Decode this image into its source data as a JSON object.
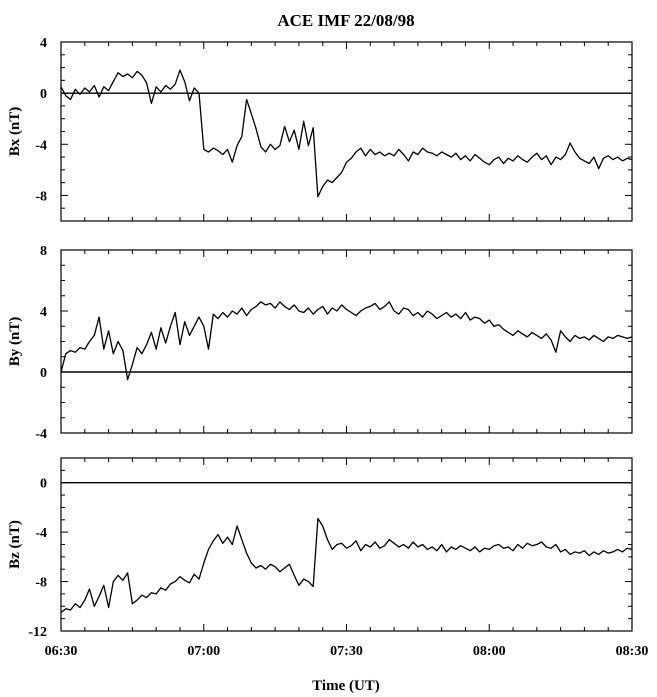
{
  "chart_data": {
    "type": "line",
    "title": "ACE IMF 22/08/98",
    "xlabel": "Time (UT)",
    "x_ticks": [
      "06:30",
      "07:00",
      "07:30",
      "08:00",
      "08:30"
    ],
    "x_range_minutes": [
      0,
      120
    ],
    "panels": [
      {
        "ylabel": "Bx (nT)",
        "ylim": [
          -10,
          4
        ],
        "yticks": [
          4,
          0,
          -4,
          -8
        ],
        "reference_line": 0,
        "series": [
          {
            "x": [
              0,
              1,
              2,
              3,
              4,
              5,
              6,
              7,
              8,
              9,
              10,
              11,
              12,
              13,
              14,
              15,
              16,
              17,
              18,
              19,
              20,
              21,
              22,
              23,
              24,
              25,
              26,
              27,
              28,
              29,
              30,
              31,
              32,
              33,
              34,
              35,
              36,
              37,
              38,
              39,
              40,
              41,
              42,
              43,
              44,
              45,
              46,
              47,
              48,
              49,
              50,
              51,
              52,
              53,
              54,
              55,
              56,
              57,
              58,
              59,
              60,
              61,
              62,
              63,
              64,
              65,
              66,
              67,
              68,
              69,
              70,
              71,
              72,
              73,
              74,
              75,
              76,
              77,
              78,
              79,
              80,
              81,
              82,
              83,
              84,
              85,
              86,
              87,
              88,
              89,
              90,
              91,
              92,
              93,
              94,
              95,
              96,
              97,
              98,
              99,
              100,
              101,
              102,
              103,
              104,
              105,
              106,
              107,
              108,
              109,
              110,
              111,
              112,
              113,
              114,
              115,
              116,
              117,
              118,
              119,
              120
            ],
            "values": [
              0.5,
              -0.2,
              -0.5,
              0.3,
              -0.1,
              0.4,
              0.1,
              0.6,
              -0.3,
              0.5,
              0.2,
              0.9,
              1.6,
              1.3,
              1.5,
              1.2,
              1.7,
              1.4,
              0.8,
              -0.8,
              0.5,
              0.1,
              0.6,
              0.3,
              0.7,
              1.8,
              0.9,
              -0.6,
              0.4,
              0.0,
              -4.4,
              -4.6,
              -4.3,
              -4.5,
              -4.8,
              -4.4,
              -5.4,
              -4.1,
              -3.4,
              -0.5,
              -1.6,
              -2.8,
              -4.2,
              -4.6,
              -4.0,
              -4.4,
              -4.1,
              -2.6,
              -3.8,
              -2.9,
              -4.4,
              -2.2,
              -4.1,
              -2.7,
              -8.1,
              -7.3,
              -6.8,
              -7.0,
              -6.6,
              -6.2,
              -5.4,
              -5.1,
              -4.6,
              -4.3,
              -4.9,
              -4.4,
              -4.8,
              -4.6,
              -4.9,
              -4.7,
              -4.9,
              -4.4,
              -4.8,
              -5.3,
              -4.6,
              -4.8,
              -4.3,
              -4.6,
              -4.7,
              -4.9,
              -4.6,
              -4.8,
              -5.0,
              -4.7,
              -5.2,
              -4.9,
              -5.3,
              -4.8,
              -5.1,
              -5.4,
              -5.6,
              -5.2,
              -5.0,
              -5.5,
              -5.1,
              -5.3,
              -4.9,
              -5.2,
              -5.4,
              -5.0,
              -4.7,
              -5.2,
              -4.9,
              -5.6,
              -5.0,
              -5.2,
              -4.8,
              -3.9,
              -4.6,
              -5.1,
              -5.3,
              -5.5,
              -5.0,
              -5.9,
              -5.1,
              -4.9,
              -5.2,
              -5.0,
              -5.3,
              -5.1,
              -5.2
            ]
          }
        ]
      },
      {
        "ylabel": "By (nT)",
        "ylim": [
          -4,
          8
        ],
        "yticks": [
          8,
          4,
          0,
          -4
        ],
        "reference_line": 0,
        "series": [
          {
            "x": [
              0,
              1,
              2,
              3,
              4,
              5,
              6,
              7,
              8,
              9,
              10,
              11,
              12,
              13,
              14,
              15,
              16,
              17,
              18,
              19,
              20,
              21,
              22,
              23,
              24,
              25,
              26,
              27,
              28,
              29,
              30,
              31,
              32,
              33,
              34,
              35,
              36,
              37,
              38,
              39,
              40,
              41,
              42,
              43,
              44,
              45,
              46,
              47,
              48,
              49,
              50,
              51,
              52,
              53,
              54,
              55,
              56,
              57,
              58,
              59,
              60,
              61,
              62,
              63,
              64,
              65,
              66,
              67,
              68,
              69,
              70,
              71,
              72,
              73,
              74,
              75,
              76,
              77,
              78,
              79,
              80,
              81,
              82,
              83,
              84,
              85,
              86,
              87,
              88,
              89,
              90,
              91,
              92,
              93,
              94,
              95,
              96,
              97,
              98,
              99,
              100,
              101,
              102,
              103,
              104,
              105,
              106,
              107,
              108,
              109,
              110,
              111,
              112,
              113,
              114,
              115,
              116,
              117,
              118,
              119,
              120
            ],
            "values": [
              0.0,
              1.2,
              1.4,
              1.3,
              1.6,
              1.5,
              2.0,
              2.4,
              3.6,
              1.5,
              2.7,
              1.2,
              2.0,
              1.4,
              -0.5,
              0.5,
              1.6,
              1.2,
              1.8,
              2.6,
              1.5,
              2.9,
              1.9,
              3.0,
              3.9,
              1.8,
              3.3,
              2.4,
              3.0,
              3.6,
              3.0,
              1.5,
              3.8,
              3.5,
              3.9,
              3.6,
              4.0,
              3.8,
              4.2,
              3.7,
              4.1,
              4.3,
              4.6,
              4.4,
              4.5,
              4.2,
              4.6,
              4.3,
              4.1,
              4.4,
              4.0,
              3.9,
              4.2,
              3.8,
              4.1,
              4.3,
              3.8,
              4.2,
              4.0,
              4.4,
              4.1,
              3.9,
              3.7,
              4.0,
              4.2,
              4.3,
              4.5,
              4.1,
              4.3,
              4.6,
              4.0,
              3.8,
              4.2,
              4.1,
              3.7,
              3.9,
              3.6,
              4.0,
              3.8,
              3.5,
              3.7,
              3.9,
              3.6,
              3.8,
              3.5,
              3.9,
              3.4,
              3.6,
              3.5,
              3.2,
              3.4,
              3.0,
              3.1,
              2.8,
              2.6,
              2.4,
              2.7,
              2.5,
              2.3,
              2.6,
              2.4,
              2.2,
              2.5,
              2.1,
              1.3,
              2.7,
              2.3,
              2.0,
              2.4,
              2.2,
              2.3,
              2.1,
              2.4,
              2.2,
              2.0,
              2.3,
              2.2,
              2.4,
              2.3,
              2.2,
              2.3
            ]
          }
        ]
      },
      {
        "ylabel": "Bz (nT)",
        "ylim": [
          -12,
          2
        ],
        "yticks": [
          0,
          -4,
          -8,
          -12
        ],
        "reference_line": 0,
        "series": [
          {
            "x": [
              0,
              1,
              2,
              3,
              4,
              5,
              6,
              7,
              8,
              9,
              10,
              11,
              12,
              13,
              14,
              15,
              16,
              17,
              18,
              19,
              20,
              21,
              22,
              23,
              24,
              25,
              26,
              27,
              28,
              29,
              30,
              31,
              32,
              33,
              34,
              35,
              36,
              37,
              38,
              39,
              40,
              41,
              42,
              43,
              44,
              45,
              46,
              47,
              48,
              49,
              50,
              51,
              52,
              53,
              54,
              55,
              56,
              57,
              58,
              59,
              60,
              61,
              62,
              63,
              64,
              65,
              66,
              67,
              68,
              69,
              70,
              71,
              72,
              73,
              74,
              75,
              76,
              77,
              78,
              79,
              80,
              81,
              82,
              83,
              84,
              85,
              86,
              87,
              88,
              89,
              90,
              91,
              92,
              93,
              94,
              95,
              96,
              97,
              98,
              99,
              100,
              101,
              102,
              103,
              104,
              105,
              106,
              107,
              108,
              109,
              110,
              111,
              112,
              113,
              114,
              115,
              116,
              117,
              118,
              119,
              120
            ],
            "values": [
              -10.5,
              -10.2,
              -10.3,
              -9.8,
              -10.1,
              -9.5,
              -8.6,
              -10.0,
              -9.2,
              -8.3,
              -10.1,
              -8.0,
              -7.5,
              -7.9,
              -7.3,
              -9.8,
              -9.5,
              -9.1,
              -9.3,
              -8.9,
              -9.0,
              -8.5,
              -8.7,
              -8.2,
              -8.0,
              -7.6,
              -7.9,
              -8.1,
              -7.4,
              -7.8,
              -6.5,
              -5.4,
              -4.7,
              -4.2,
              -4.9,
              -4.4,
              -5.0,
              -3.5,
              -4.6,
              -5.7,
              -6.5,
              -6.9,
              -6.7,
              -7.0,
              -6.6,
              -6.8,
              -7.2,
              -6.9,
              -6.6,
              -7.5,
              -8.3,
              -7.8,
              -8.0,
              -8.4,
              -2.9,
              -3.5,
              -4.6,
              -5.4,
              -5.0,
              -4.9,
              -5.3,
              -5.1,
              -4.7,
              -5.5,
              -5.0,
              -5.2,
              -4.8,
              -5.3,
              -5.1,
              -4.6,
              -4.9,
              -5.2,
              -5.0,
              -5.3,
              -4.8,
              -5.2,
              -5.0,
              -5.4,
              -5.2,
              -5.5,
              -5.0,
              -5.6,
              -5.2,
              -5.4,
              -5.1,
              -5.3,
              -5.5,
              -5.2,
              -5.6,
              -5.3,
              -5.4,
              -5.1,
              -5.0,
              -5.3,
              -5.2,
              -5.5,
              -5.0,
              -5.3,
              -4.9,
              -5.1,
              -5.0,
              -4.8,
              -5.2,
              -5.3,
              -5.0,
              -5.6,
              -5.4,
              -5.8,
              -5.6,
              -5.7,
              -5.5,
              -5.9,
              -5.6,
              -5.8,
              -5.5,
              -5.7,
              -5.6,
              -5.4,
              -5.6,
              -5.3,
              -5.4
            ]
          }
        ]
      }
    ]
  }
}
